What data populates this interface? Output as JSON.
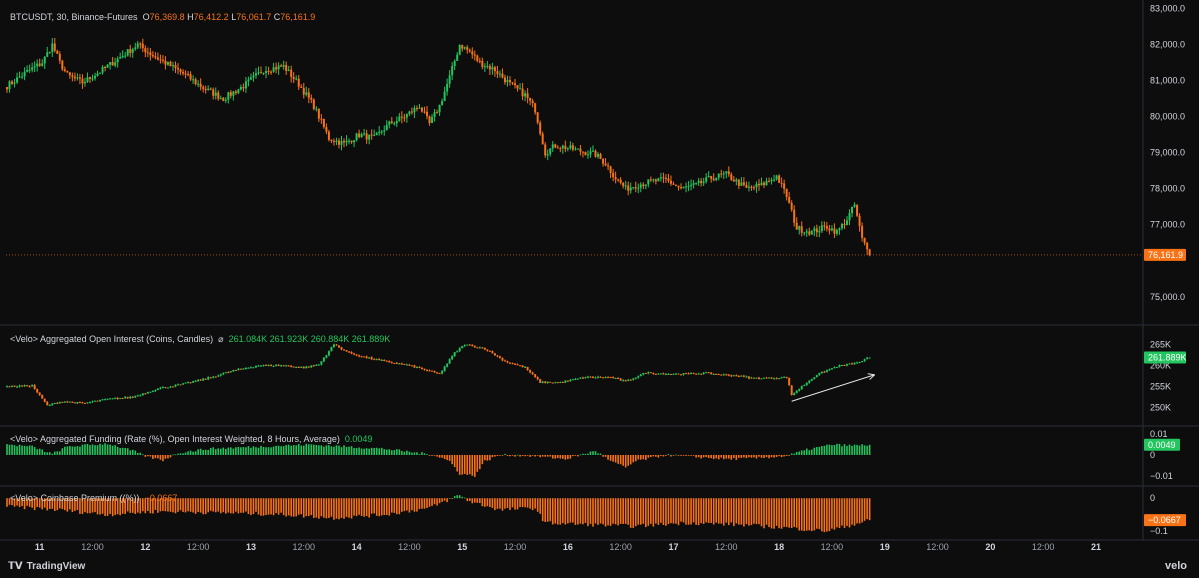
{
  "legend_main": {
    "symbol": "BTCUSDT, 30, Binance-Futures",
    "o_label": "O",
    "o_value": "76,369.8",
    "h_label": "H",
    "h_value": "76,412.2",
    "l_label": "L",
    "l_value": "76,061.7",
    "c_label": "C",
    "c_value": "76,161.9"
  },
  "legend_oi": {
    "title": "<Velo> Aggregated Open Interest (Coins, Candles)",
    "symbol": "⌀",
    "values": [
      "261.084K",
      "261.923K",
      "260.884K",
      "261.889K"
    ]
  },
  "legend_fund": {
    "title": "<Velo> Aggregated Funding (Rate (%), Open Interest Weighted, 8 Hours, Average)",
    "value": "0.0049"
  },
  "legend_prem": {
    "title": "<Velo> Coinbase Premium ((%))",
    "value": "−0.0667"
  },
  "branding": {
    "left": "TradingView",
    "right": "velo"
  },
  "colors": {
    "up": "#22c55e",
    "down": "#f97316",
    "background": "#0d0d0d",
    "text": "#d1d4dc"
  },
  "chart_data": [
    {
      "type": "candlestick",
      "name": "BTCUSDT price",
      "y_axis_ticks": [
        "83,000.0",
        "82,000.0",
        "81,000.0",
        "80,000.0",
        "79,000.0",
        "78,000.0",
        "77,000.0",
        "75,000.0"
      ],
      "ylim": [
        74300,
        83100
      ],
      "last_price_label": "76,161.9",
      "last_price": 76161.9,
      "keypoints": [
        [
          0,
          80850
        ],
        [
          8,
          81250
        ],
        [
          14,
          81500
        ],
        [
          18,
          82000
        ],
        [
          21,
          81500
        ],
        [
          24,
          81150
        ],
        [
          30,
          80950
        ],
        [
          38,
          81300
        ],
        [
          45,
          81650
        ],
        [
          52,
          82000
        ],
        [
          58,
          81700
        ],
        [
          64,
          81450
        ],
        [
          70,
          81200
        ],
        [
          78,
          80800
        ],
        [
          86,
          80500
        ],
        [
          94,
          80850
        ],
        [
          102,
          81300
        ],
        [
          110,
          81400
        ],
        [
          116,
          80900
        ],
        [
          122,
          80300
        ],
        [
          128,
          79400
        ],
        [
          134,
          79250
        ],
        [
          140,
          79500
        ],
        [
          146,
          79400
        ],
        [
          152,
          79800
        ],
        [
          158,
          80000
        ],
        [
          164,
          80300
        ],
        [
          168,
          79800
        ],
        [
          172,
          80300
        ],
        [
          176,
          81100
        ],
        [
          180,
          82000
        ],
        [
          184,
          81800
        ],
        [
          188,
          81500
        ],
        [
          194,
          81300
        ],
        [
          200,
          80900
        ],
        [
          206,
          80600
        ],
        [
          210,
          80200
        ],
        [
          214,
          79000
        ],
        [
          218,
          79200
        ],
        [
          222,
          79150
        ],
        [
          228,
          79050
        ],
        [
          234,
          78950
        ],
        [
          238,
          78700
        ],
        [
          242,
          78300
        ],
        [
          246,
          78000
        ],
        [
          250,
          78100
        ],
        [
          256,
          78200
        ],
        [
          262,
          78250
        ],
        [
          268,
          78000
        ],
        [
          274,
          78100
        ],
        [
          280,
          78300
        ],
        [
          286,
          78400
        ],
        [
          290,
          78200
        ],
        [
          294,
          78000
        ],
        [
          300,
          78100
        ],
        [
          306,
          78350
        ],
        [
          310,
          77800
        ],
        [
          314,
          76900
        ],
        [
          320,
          76800
        ],
        [
          326,
          76950
        ],
        [
          330,
          76800
        ],
        [
          334,
          77150
        ],
        [
          337,
          77550
        ],
        [
          340,
          76600
        ],
        [
          343,
          76150
        ]
      ]
    },
    {
      "type": "candlestick",
      "name": "Aggregated Open Interest",
      "y_axis_ticks": [
        "265K",
        "260K",
        "255K",
        "250K"
      ],
      "ylim": [
        248000,
        267000
      ],
      "last_value_label": "261.889K",
      "keypoints": [
        [
          0,
          255000
        ],
        [
          10,
          255200
        ],
        [
          16,
          250500
        ],
        [
          22,
          251500
        ],
        [
          30,
          251000
        ],
        [
          40,
          252000
        ],
        [
          50,
          252500
        ],
        [
          60,
          254500
        ],
        [
          70,
          255600
        ],
        [
          80,
          257000
        ],
        [
          90,
          258800
        ],
        [
          100,
          260000
        ],
        [
          110,
          260000
        ],
        [
          118,
          259500
        ],
        [
          124,
          260200
        ],
        [
          130,
          265000
        ],
        [
          136,
          263000
        ],
        [
          142,
          262000
        ],
        [
          150,
          261000
        ],
        [
          160,
          260000
        ],
        [
          166,
          259000
        ],
        [
          172,
          258000
        ],
        [
          178,
          263000
        ],
        [
          182,
          265000
        ],
        [
          190,
          264000
        ],
        [
          198,
          261000
        ],
        [
          206,
          259500
        ],
        [
          212,
          256000
        ],
        [
          220,
          256000
        ],
        [
          230,
          257200
        ],
        [
          240,
          257200
        ],
        [
          246,
          256200
        ],
        [
          254,
          258300
        ],
        [
          262,
          258000
        ],
        [
          270,
          258000
        ],
        [
          278,
          258200
        ],
        [
          284,
          257800
        ],
        [
          290,
          257600
        ],
        [
          296,
          257000
        ],
        [
          304,
          257000
        ],
        [
          310,
          257200
        ],
        [
          312,
          253000
        ],
        [
          316,
          255000
        ],
        [
          322,
          257800
        ],
        [
          330,
          259800
        ],
        [
          338,
          260600
        ],
        [
          343,
          261889
        ]
      ]
    },
    {
      "type": "bar",
      "name": "Aggregated Funding",
      "y_axis_ticks": [
        "0.01",
        "0",
        "−0.01"
      ],
      "ylim": [
        -0.013,
        0.012
      ],
      "last_value_label": "0.0049",
      "keypoints": [
        [
          0,
          0.005
        ],
        [
          10,
          0.004
        ],
        [
          18,
          0.0005
        ],
        [
          24,
          0.004
        ],
        [
          40,
          0.0055
        ],
        [
          50,
          0.002
        ],
        [
          56,
          -0.001
        ],
        [
          62,
          -0.0025
        ],
        [
          68,
          0.001
        ],
        [
          80,
          0.003
        ],
        [
          100,
          0.004
        ],
        [
          120,
          0.005
        ],
        [
          150,
          0.003
        ],
        [
          170,
          0.0
        ],
        [
          176,
          -0.003
        ],
        [
          180,
          -0.009
        ],
        [
          186,
          -0.01
        ],
        [
          190,
          -0.003
        ],
        [
          196,
          0.0
        ],
        [
          210,
          -0.0005
        ],
        [
          222,
          -0.002
        ],
        [
          234,
          0.002
        ],
        [
          240,
          -0.003
        ],
        [
          246,
          -0.006
        ],
        [
          250,
          -0.003
        ],
        [
          262,
          0.0
        ],
        [
          274,
          -0.001
        ],
        [
          286,
          -0.002
        ],
        [
          298,
          -0.0015
        ],
        [
          310,
          -0.0005
        ],
        [
          318,
          0.0025
        ],
        [
          328,
          0.005
        ],
        [
          336,
          0.0045
        ],
        [
          343,
          0.0049
        ]
      ]
    },
    {
      "type": "bar",
      "name": "Coinbase Premium",
      "y_axis_ticks": [
        "0",
        "−0.1"
      ],
      "ylim": [
        -0.115,
        0.025
      ],
      "last_value_label": "−0.0667",
      "keypoints": [
        [
          0,
          -0.025
        ],
        [
          20,
          -0.035
        ],
        [
          40,
          -0.05
        ],
        [
          60,
          -0.04
        ],
        [
          90,
          -0.045
        ],
        [
          110,
          -0.05
        ],
        [
          130,
          -0.06
        ],
        [
          150,
          -0.05
        ],
        [
          168,
          -0.03
        ],
        [
          174,
          -0.01
        ],
        [
          180,
          0.01
        ],
        [
          184,
          -0.01
        ],
        [
          196,
          -0.035
        ],
        [
          210,
          -0.03
        ],
        [
          214,
          -0.075
        ],
        [
          230,
          -0.08
        ],
        [
          250,
          -0.085
        ],
        [
          270,
          -0.075
        ],
        [
          290,
          -0.08
        ],
        [
          310,
          -0.09
        ],
        [
          326,
          -0.1
        ],
        [
          334,
          -0.085
        ],
        [
          343,
          -0.067
        ]
      ]
    }
  ],
  "x_axis_ticks": [
    {
      "label": "11",
      "major": true,
      "bar": 13
    },
    {
      "label": "12:00",
      "major": false,
      "bar": 34
    },
    {
      "label": "12",
      "major": true,
      "bar": 55
    },
    {
      "label": "12:00",
      "major": false,
      "bar": 76
    },
    {
      "label": "13",
      "major": true,
      "bar": 97
    },
    {
      "label": "12:00",
      "major": false,
      "bar": 118
    },
    {
      "label": "14",
      "major": true,
      "bar": 139
    },
    {
      "label": "12:00",
      "major": false,
      "bar": 160
    },
    {
      "label": "15",
      "major": true,
      "bar": 181
    },
    {
      "label": "12:00",
      "major": false,
      "bar": 202
    },
    {
      "label": "16",
      "major": true,
      "bar": 223
    },
    {
      "label": "12:00",
      "major": false,
      "bar": 244
    },
    {
      "label": "17",
      "major": true,
      "bar": 265
    },
    {
      "label": "12:00",
      "major": false,
      "bar": 286
    },
    {
      "label": "18",
      "major": true,
      "bar": 307
    },
    {
      "label": "12:00",
      "major": false,
      "bar": 328
    },
    {
      "label": "19",
      "major": true,
      "bar": 349
    },
    {
      "label": "12:00",
      "major": false,
      "bar": 370
    },
    {
      "label": "20",
      "major": true,
      "bar": 391
    },
    {
      "label": "12:00",
      "major": false,
      "bar": 412
    },
    {
      "label": "21",
      "major": true,
      "bar": 433
    }
  ],
  "annotations": [
    {
      "type": "arrow",
      "description": "upward trend arrow under open interest",
      "from": [
        312,
        251500
      ],
      "to": [
        345,
        257800
      ]
    }
  ]
}
